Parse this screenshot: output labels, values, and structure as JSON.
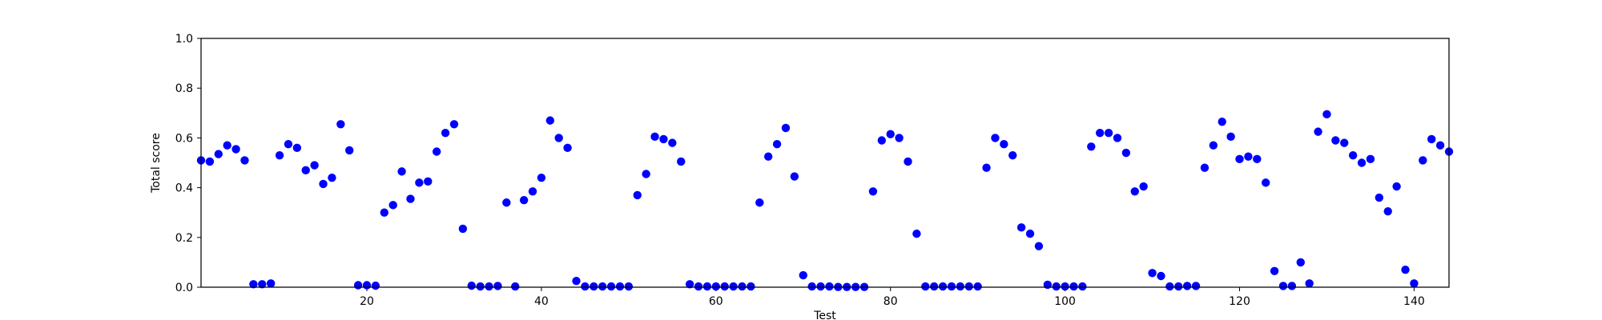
{
  "chart_data": {
    "type": "scatter",
    "title": "",
    "xlabel": "Test",
    "ylabel": "Total score",
    "xlim": [
      1,
      144
    ],
    "ylim": [
      0.0,
      1.0
    ],
    "xticks": [
      20,
      40,
      60,
      80,
      100,
      120,
      140
    ],
    "yticks": [
      0.0,
      0.2,
      0.4,
      0.6,
      0.8,
      1.0
    ],
    "xtick_labels": [
      "20",
      "40",
      "60",
      "80",
      "100",
      "120",
      "140"
    ],
    "ytick_labels": [
      "0.0",
      "0.2",
      "0.4",
      "0.6",
      "0.8",
      "1.0"
    ],
    "grid": false,
    "point_color": "#0000ff",
    "x": [
      1,
      2,
      3,
      4,
      5,
      6,
      7,
      8,
      9,
      10,
      11,
      12,
      13,
      14,
      15,
      16,
      17,
      18,
      19,
      20,
      21,
      22,
      23,
      24,
      25,
      26,
      27,
      28,
      29,
      30,
      31,
      32,
      33,
      34,
      35,
      36,
      37,
      38,
      39,
      40,
      41,
      42,
      43,
      44,
      45,
      46,
      47,
      48,
      49,
      50,
      51,
      52,
      53,
      54,
      55,
      56,
      57,
      58,
      59,
      60,
      61,
      62,
      63,
      64,
      65,
      66,
      67,
      68,
      69,
      70,
      71,
      72,
      73,
      74,
      75,
      76,
      77,
      78,
      79,
      80,
      81,
      82,
      83,
      84,
      85,
      86,
      87,
      88,
      89,
      90,
      91,
      92,
      93,
      94,
      95,
      96,
      97,
      98,
      99,
      100,
      101,
      102,
      103,
      104,
      105,
      106,
      107,
      108,
      109,
      110,
      111,
      112,
      113,
      114,
      115,
      116,
      117,
      118,
      119,
      120,
      121,
      122,
      123,
      124,
      125,
      126,
      127,
      128,
      129,
      130,
      131,
      132,
      133,
      134,
      135,
      136,
      137,
      138,
      139,
      140,
      141,
      142,
      143,
      144
    ],
    "y": [
      0.51,
      0.505,
      0.535,
      0.57,
      0.555,
      0.51,
      0.012,
      0.012,
      0.015,
      0.53,
      0.575,
      0.56,
      0.47,
      0.49,
      0.415,
      0.44,
      0.655,
      0.55,
      0.008,
      0.008,
      0.006,
      0.3,
      0.33,
      0.465,
      0.355,
      0.42,
      0.425,
      0.545,
      0.62,
      0.655,
      0.235,
      0.006,
      0.003,
      0.003,
      0.005,
      0.34,
      0.003,
      0.35,
      0.385,
      0.44,
      0.67,
      0.6,
      0.56,
      0.025,
      0.003,
      0.003,
      0.003,
      0.003,
      0.003,
      0.003,
      0.37,
      0.455,
      0.605,
      0.595,
      0.58,
      0.505,
      0.012,
      0.003,
      0.003,
      0.003,
      0.003,
      0.003,
      0.003,
      0.003,
      0.34,
      0.525,
      0.575,
      0.64,
      0.445,
      0.048,
      0.003,
      0.003,
      0.003,
      0.001,
      0.001,
      0.001,
      0.001,
      0.385,
      0.59,
      0.615,
      0.6,
      0.505,
      0.215,
      0.003,
      0.003,
      0.003,
      0.003,
      0.003,
      0.003,
      0.003,
      0.48,
      0.6,
      0.575,
      0.53,
      0.24,
      0.215,
      0.165,
      0.01,
      0.003,
      0.003,
      0.003,
      0.003,
      0.565,
      0.62,
      0.62,
      0.6,
      0.54,
      0.385,
      0.405,
      0.057,
      0.045,
      0.003,
      0.003,
      0.005,
      0.005,
      0.48,
      0.57,
      0.665,
      0.605,
      0.515,
      0.525,
      0.515,
      0.42,
      0.065,
      0.005,
      0.005,
      0.1,
      0.015,
      0.625,
      0.695,
      0.59,
      0.58,
      0.53,
      0.5,
      0.515,
      0.36,
      0.305,
      0.405,
      0.07,
      0.015,
      0.51,
      0.595,
      0.57,
      0.545
    ]
  }
}
